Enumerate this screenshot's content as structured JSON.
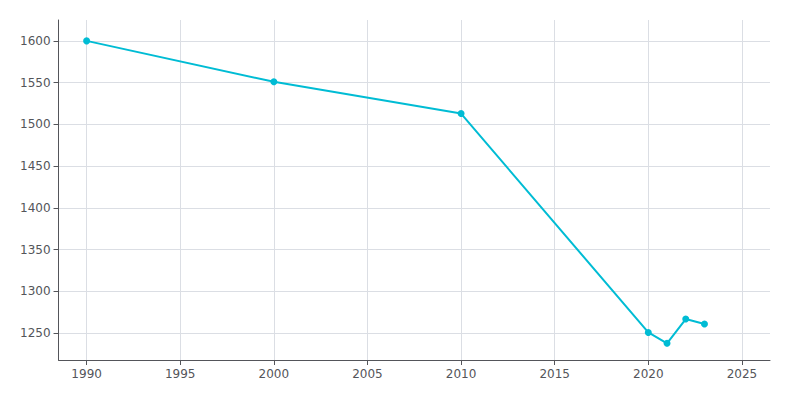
{
  "chart_data": {
    "type": "line",
    "x": [
      1990,
      2000,
      2010,
      2020,
      2021,
      2022,
      2023
    ],
    "values": [
      1600,
      1551,
      1513,
      1251,
      1238,
      1267,
      1261
    ],
    "color": "#00bcd4",
    "marker": "circle",
    "xlim": [
      1988.5,
      2026.5
    ],
    "ylim": [
      1218,
      1625
    ],
    "xticks": [
      1990,
      1995,
      2000,
      2005,
      2010,
      2015,
      2020,
      2025
    ],
    "yticks": [
      1250,
      1300,
      1350,
      1400,
      1450,
      1500,
      1550,
      1600
    ],
    "grid": true
  }
}
